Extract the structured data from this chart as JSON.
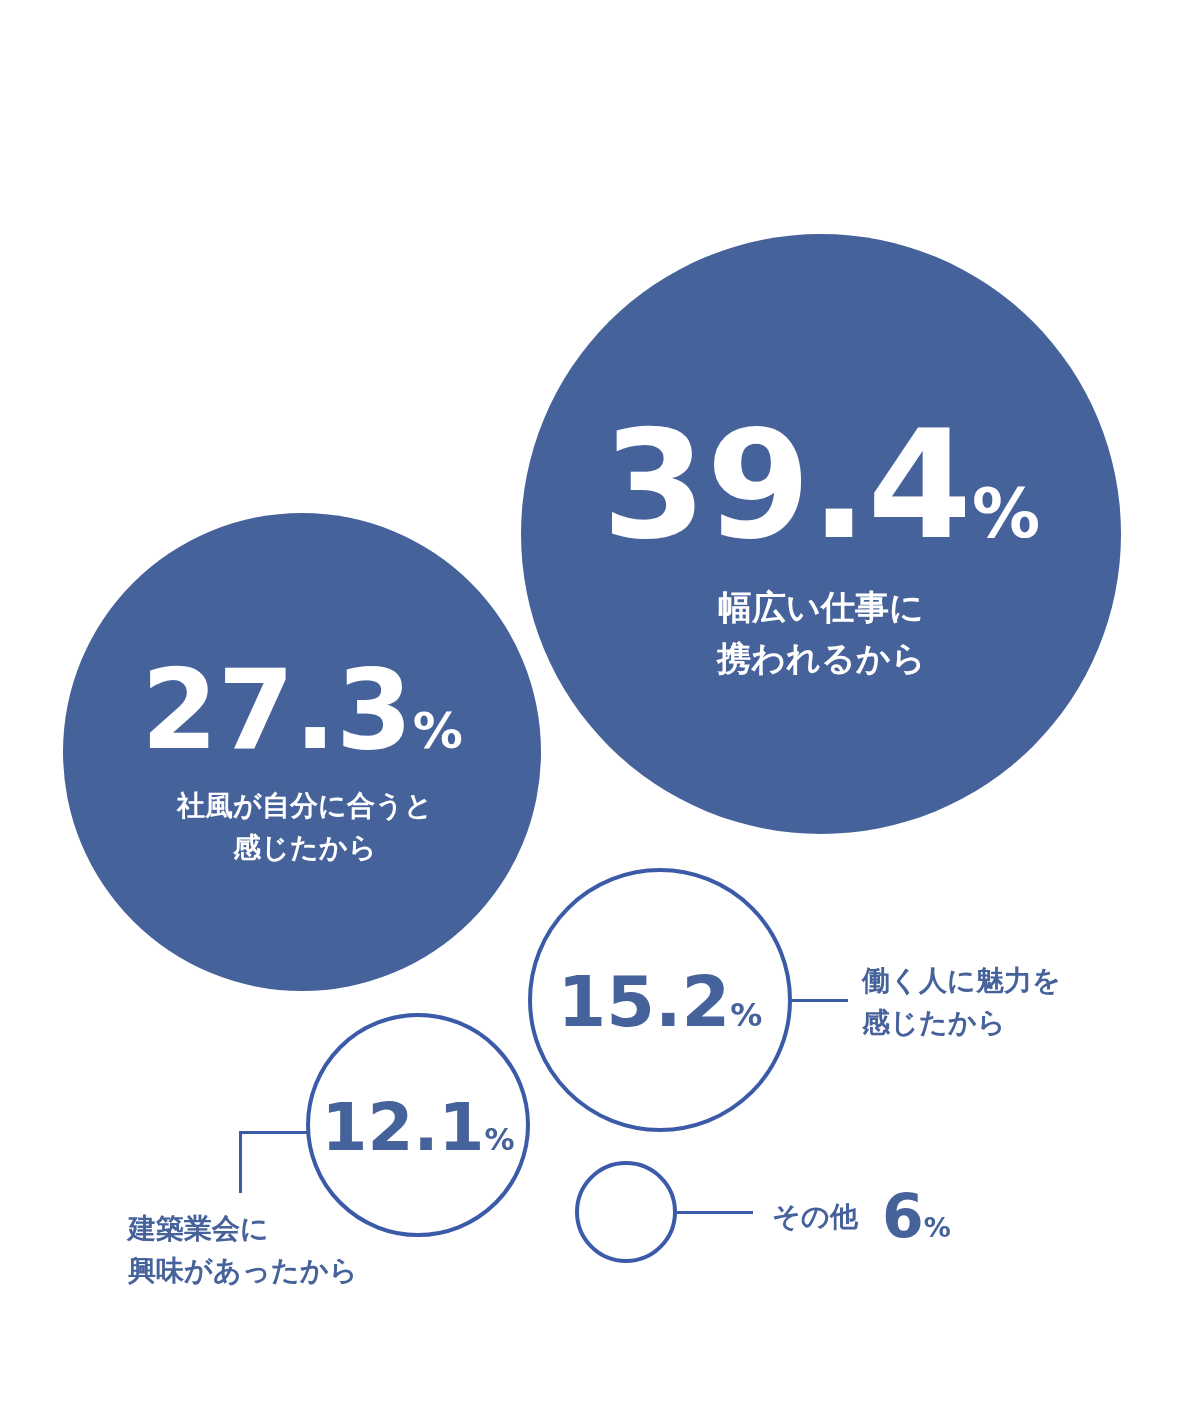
{
  "chart_data": {
    "type": "other",
    "categories": [
      "幅広い仕事に携われるから",
      "社風が自分に合うと感じたから",
      "働く人に魅力を感じたから",
      "建築業会に興味があったから",
      "その他"
    ],
    "values": [
      39.4,
      27.3,
      15.2,
      12.1,
      6
    ],
    "value_labels": [
      "39.4%",
      "27.3%",
      "15.2%",
      "12.1%",
      "6%"
    ],
    "colors": [
      "#46629b",
      "#46629b",
      "#3b5ba8",
      "#3b5ba8",
      "#3b5ba8"
    ]
  }
}
